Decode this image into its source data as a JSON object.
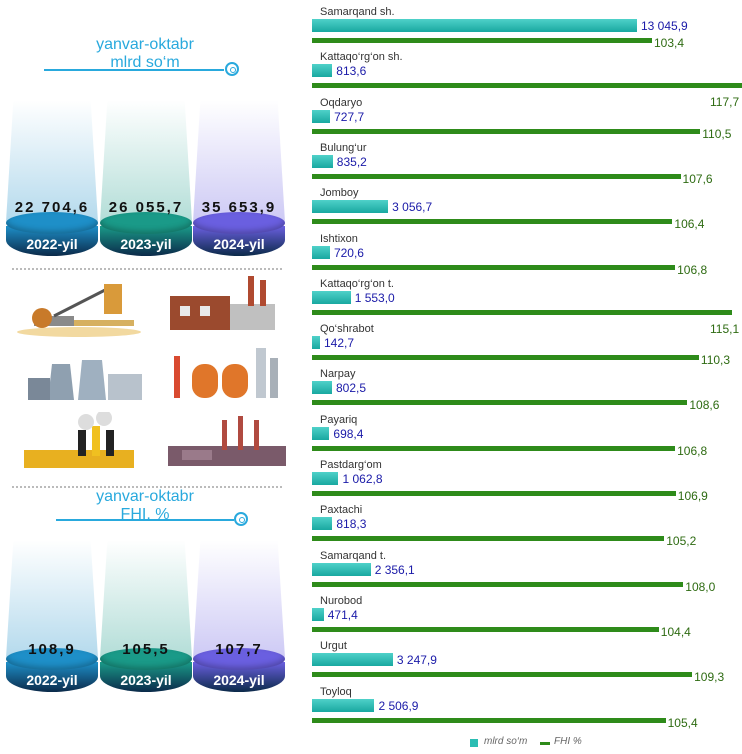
{
  "left_panel": {
    "top_caption": {
      "line1": "yanvar-oktabr",
      "line2": "mlrd so‘m"
    },
    "bottom_caption": {
      "line1": "yanvar-oktabr",
      "line2": "FHI, %"
    },
    "volume_pods": [
      {
        "year": "2022-yil",
        "value": "22 704,6",
        "color": "#1e8fc8"
      },
      {
        "year": "2023-yil",
        "value": "26 055,7",
        "color": "#1a9a88"
      },
      {
        "year": "2024-yil",
        "value": "35 653,9",
        "color": "#6a5fe0"
      }
    ],
    "index_pods": [
      {
        "year": "2022-yil",
        "value": "108,9",
        "color": "#1e8fc8"
      },
      {
        "year": "2023-yil",
        "value": "105,5",
        "color": "#1a9a88"
      },
      {
        "year": "2024-yil",
        "value": "107,7",
        "color": "#6a5fe0"
      }
    ],
    "factory_icons": [
      "excavator-icon",
      "factory-icon",
      "power-plant-icon",
      "refinery-icon",
      "plant-icon",
      "smokestack-icon"
    ]
  },
  "chart_data": {
    "type": "bar",
    "orientation": "horizontal",
    "categories": [
      "Samarqand sh.",
      "Kattaqo‘rg‘on sh.",
      "Oqdaryo",
      "Bulung‘ur",
      "Jomboy",
      "Ishtixon",
      "Kattaqo‘rg‘on t.",
      "Qo‘shrabot",
      "Narpay",
      "Payariq",
      "Pastdarg‘om",
      "Paxtachi",
      "Samarqand t.",
      "Nurobod",
      "Urgut",
      "Toyloq"
    ],
    "series": [
      {
        "name": "mlrd so‘m",
        "color": "#2bbdb3",
        "values": [
          13045.9,
          813.6,
          727.7,
          835.2,
          3056.7,
          720.6,
          1553.0,
          142.7,
          802.5,
          698.4,
          1062.8,
          818.3,
          2356.1,
          471.4,
          3247.9,
          2506.9
        ],
        "labels": [
          "13 045,9",
          "813,6",
          "727,7",
          "835,2",
          "3 056,7",
          "720,6",
          "1 553,0",
          "142,7",
          "802,5",
          "698,4",
          "1 062,8",
          "818,3",
          "2 356,1",
          "471,4",
          "3 247,9",
          "2 506,9"
        ]
      },
      {
        "name": "FHI %",
        "color": "#2e8b1a",
        "values": [
          103.4,
          117.7,
          110.5,
          107.6,
          106.4,
          106.8,
          115.1,
          110.3,
          108.6,
          106.8,
          106.9,
          105.2,
          108.0,
          104.4,
          109.3,
          105.4
        ],
        "labels": [
          "103,4",
          "117,7",
          "110,5",
          "107,6",
          "106,4",
          "106,8",
          "115,1",
          "110,3",
          "108,6",
          "106,8",
          "106,9",
          "105,2",
          "108,0",
          "104,4",
          "109,3",
          "105,4"
        ]
      }
    ],
    "legend": {
      "position": "bottom",
      "items": [
        "mlrd so‘m",
        "FHI %"
      ]
    }
  }
}
